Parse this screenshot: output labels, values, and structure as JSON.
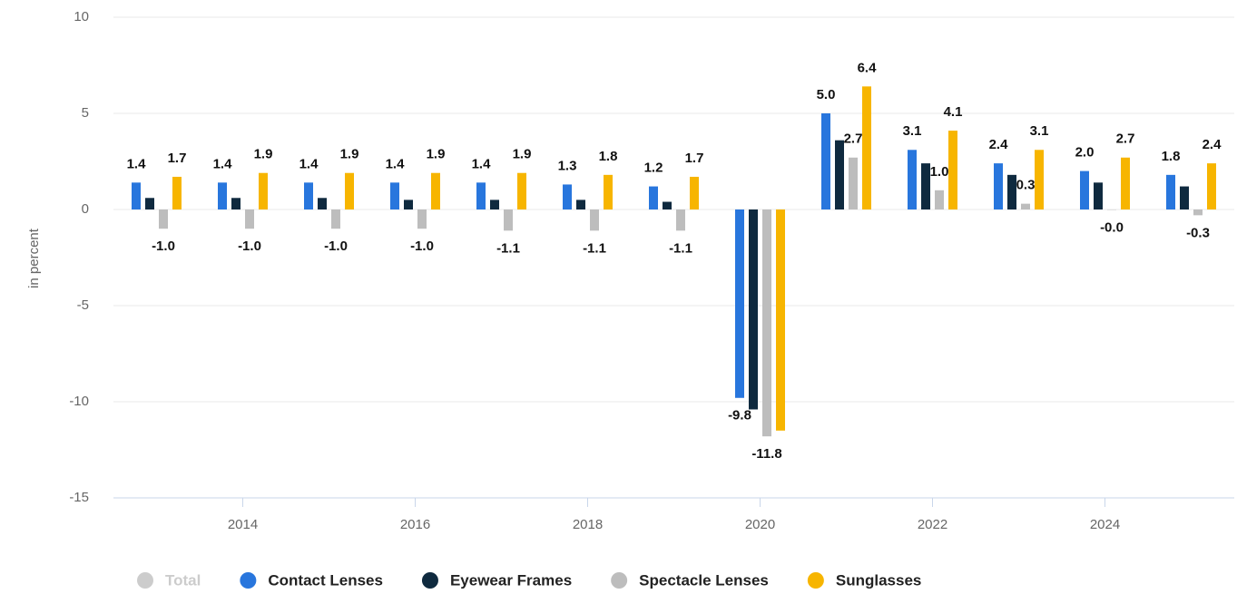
{
  "chart_data": {
    "type": "bar",
    "y_label": "in percent",
    "x": [
      2013,
      2014,
      2015,
      2016,
      2017,
      2018,
      2019,
      2020,
      2021,
      2022,
      2023,
      2024,
      2025
    ],
    "xlim": [
      2012.5,
      2025.5
    ],
    "xticks": [
      2014,
      2016,
      2018,
      2020,
      2022,
      2024
    ],
    "ylim": [
      -15,
      10
    ],
    "yticks": [
      -15,
      -10,
      -5,
      0,
      5,
      10
    ],
    "grid": true,
    "legend": "bottom",
    "series": [
      {
        "name": "Total",
        "color": "#cccccc",
        "visible": false,
        "values": [
          null,
          null,
          null,
          null,
          null,
          null,
          null,
          null,
          null,
          null,
          null,
          null,
          null
        ]
      },
      {
        "name": "Contact Lenses",
        "color": "#2876dd",
        "values": [
          1.4,
          1.4,
          1.4,
          1.4,
          1.4,
          1.3,
          1.2,
          -9.8,
          5.0,
          3.1,
          2.4,
          2.0,
          1.8
        ],
        "value_labels": [
          "1.4",
          "1.4",
          "1.4",
          "1.4",
          "1.4",
          "1.3",
          "1.2",
          "-9.8",
          "5.0",
          "3.1",
          "2.4",
          "2.0",
          "1.8"
        ]
      },
      {
        "name": "Eyewear Frames",
        "color": "#0f2a3f",
        "values": [
          0.6,
          0.6,
          0.6,
          0.5,
          0.5,
          0.5,
          0.4,
          -10.4,
          3.6,
          2.4,
          1.8,
          1.4,
          1.2
        ]
      },
      {
        "name": "Spectacle Lenses",
        "color": "#bdbdbd",
        "values": [
          -1.0,
          -1.0,
          -1.0,
          -1.0,
          -1.1,
          -1.1,
          -1.1,
          -11.8,
          2.7,
          1.0,
          0.3,
          -0.02,
          -0.3
        ],
        "value_labels": [
          "-1.0",
          "-1.0",
          "-1.0",
          "-1.0",
          "-1.1",
          "-1.1",
          "-1.1",
          "-11.8",
          "2.7",
          "1.0",
          "0.3",
          "-0.0",
          "-0.3"
        ]
      },
      {
        "name": "Sunglasses",
        "color": "#f7b500",
        "values": [
          1.7,
          1.9,
          1.9,
          1.9,
          1.9,
          1.8,
          1.7,
          -11.5,
          6.4,
          4.1,
          3.1,
          2.7,
          2.4
        ],
        "value_labels": [
          "1.7",
          "1.9",
          "1.9",
          "1.9",
          "1.9",
          "1.8",
          "1.7",
          null,
          "6.4",
          "4.1",
          "3.1",
          "2.7",
          "2.4"
        ]
      }
    ]
  }
}
